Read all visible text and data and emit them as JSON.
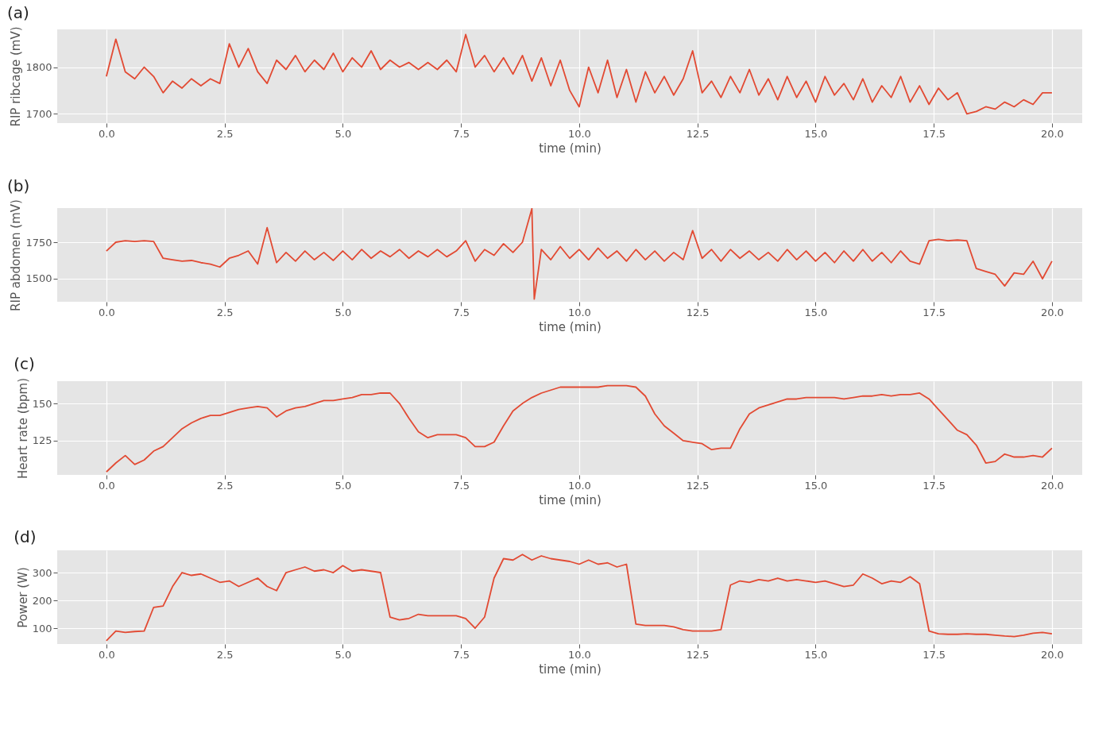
{
  "chart_data": [
    {
      "type": "line",
      "title": "(a)",
      "xlabel": "time (min)",
      "ylabel": "RIP ribcage (mV)",
      "x": [
        0,
        0.2,
        0.4,
        0.6,
        0.8,
        1,
        1.2,
        1.4,
        1.6,
        1.8,
        2,
        2.2,
        2.4,
        2.6,
        2.8,
        3,
        3.2,
        3.4,
        3.6,
        3.8,
        4,
        4.2,
        4.4,
        4.6,
        4.8,
        5,
        5.2,
        5.4,
        5.6,
        5.8,
        6,
        6.2,
        6.4,
        6.6,
        6.8,
        7,
        7.2,
        7.4,
        7.6,
        7.8,
        8,
        8.2,
        8.4,
        8.6,
        8.8,
        9,
        9.2,
        9.4,
        9.6,
        9.8,
        10,
        10.2,
        10.4,
        10.6,
        10.8,
        11,
        11.2,
        11.4,
        11.6,
        11.8,
        12,
        12.2,
        12.4,
        12.6,
        12.8,
        13,
        13.2,
        13.4,
        13.6,
        13.8,
        14,
        14.2,
        14.4,
        14.6,
        14.8,
        15,
        15.2,
        15.4,
        15.6,
        15.8,
        16,
        16.2,
        16.4,
        16.6,
        16.8,
        17,
        17.2,
        17.4,
        17.6,
        17.8,
        18,
        18.2,
        18.4,
        18.6,
        18.8,
        19,
        19.2,
        19.4,
        19.6,
        19.8,
        20
      ],
      "series": [
        {
          "color": "#e24a33",
          "values": [
            1780,
            1860,
            1790,
            1775,
            1800,
            1780,
            1745,
            1770,
            1755,
            1775,
            1760,
            1775,
            1765,
            1850,
            1800,
            1840,
            1790,
            1765,
            1815,
            1795,
            1825,
            1790,
            1815,
            1795,
            1830,
            1790,
            1820,
            1800,
            1835,
            1795,
            1815,
            1800,
            1810,
            1795,
            1810,
            1795,
            1815,
            1790,
            1870,
            1800,
            1825,
            1790,
            1820,
            1785,
            1825,
            1770,
            1820,
            1760,
            1815,
            1750,
            1715,
            1800,
            1745,
            1815,
            1735,
            1795,
            1725,
            1790,
            1745,
            1780,
            1740,
            1775,
            1835,
            1745,
            1770,
            1735,
            1780,
            1745,
            1795,
            1740,
            1775,
            1730,
            1780,
            1735,
            1770,
            1725,
            1780,
            1740,
            1765,
            1730,
            1775,
            1725,
            1760,
            1735,
            1780,
            1725,
            1760,
            1720,
            1755,
            1730,
            1745,
            1700,
            1705,
            1715,
            1710,
            1725,
            1715,
            1730,
            1720,
            1745,
            1745
          ]
        }
      ],
      "xlim": [
        -1.04,
        20.64
      ],
      "ylim": [
        1680,
        1881
      ],
      "xticks": [
        {
          "value": 0,
          "label": "0.0"
        },
        2.5,
        {
          "value": 5,
          "label": "5.0"
        },
        7.5,
        {
          "value": 10,
          "label": "10.0"
        },
        12.5,
        {
          "value": 15,
          "label": "15.0"
        },
        17.5,
        {
          "value": 20,
          "label": "20.0"
        }
      ],
      "yticks": [
        1700,
        1800
      ],
      "grid": true
    },
    {
      "type": "line",
      "title": "(b)",
      "xlabel": "time (min)",
      "ylabel": "RIP abdomen (mV)",
      "x": [
        0,
        0.2,
        0.4,
        0.6,
        0.8,
        1,
        1.2,
        1.4,
        1.6,
        1.8,
        2,
        2.2,
        2.4,
        2.6,
        2.8,
        3,
        3.2,
        3.4,
        3.6,
        3.8,
        4,
        4.2,
        4.4,
        4.6,
        4.8,
        5,
        5.2,
        5.4,
        5.6,
        5.8,
        6,
        6.2,
        6.4,
        6.6,
        6.8,
        7,
        7.2,
        7.4,
        7.6,
        7.8,
        8,
        8.2,
        8.4,
        8.6,
        8.8,
        9,
        9.05,
        9.2,
        9.4,
        9.6,
        9.8,
        10,
        10.2,
        10.4,
        10.6,
        10.8,
        11,
        11.2,
        11.4,
        11.6,
        11.8,
        12,
        12.2,
        12.4,
        12.6,
        12.8,
        13,
        13.2,
        13.4,
        13.6,
        13.8,
        14,
        14.2,
        14.4,
        14.6,
        14.8,
        15,
        15.2,
        15.4,
        15.6,
        15.8,
        16,
        16.2,
        16.4,
        16.6,
        16.8,
        17,
        17.2,
        17.4,
        17.6,
        17.8,
        18,
        18.2,
        18.4,
        18.6,
        18.8,
        19,
        19.2,
        19.4,
        19.6,
        19.8,
        20
      ],
      "series": [
        {
          "color": "#e24a33",
          "values": [
            1690,
            1750,
            1760,
            1755,
            1760,
            1755,
            1640,
            1630,
            1620,
            1625,
            1610,
            1600,
            1580,
            1640,
            1660,
            1690,
            1600,
            1850,
            1610,
            1680,
            1620,
            1690,
            1630,
            1680,
            1625,
            1690,
            1630,
            1700,
            1640,
            1690,
            1650,
            1700,
            1640,
            1690,
            1650,
            1700,
            1650,
            1690,
            1760,
            1620,
            1700,
            1660,
            1740,
            1680,
            1750,
            1980,
            1360,
            1700,
            1630,
            1720,
            1640,
            1700,
            1630,
            1710,
            1640,
            1690,
            1620,
            1700,
            1630,
            1690,
            1620,
            1680,
            1630,
            1830,
            1640,
            1700,
            1620,
            1700,
            1640,
            1690,
            1630,
            1680,
            1620,
            1700,
            1630,
            1690,
            1620,
            1680,
            1610,
            1690,
            1620,
            1700,
            1620,
            1680,
            1610,
            1690,
            1620,
            1600,
            1760,
            1770,
            1760,
            1765,
            1760,
            1570,
            1550,
            1530,
            1450,
            1540,
            1530,
            1620,
            1500,
            1620
          ]
        }
      ],
      "xlim": [
        -1.04,
        20.64
      ],
      "ylim": [
        1342,
        1984
      ],
      "xticks": [
        {
          "value": 0,
          "label": "0.0"
        },
        2.5,
        {
          "value": 5,
          "label": "5.0"
        },
        7.5,
        {
          "value": 10,
          "label": "10.0"
        },
        12.5,
        {
          "value": 15,
          "label": "15.0"
        },
        17.5,
        {
          "value": 20,
          "label": "20.0"
        }
      ],
      "yticks": [
        1500,
        1750
      ],
      "grid": true
    },
    {
      "type": "line",
      "title": "(c)",
      "xlabel": "time (min)",
      "ylabel": "Heart rate (bpm)",
      "x": [
        0,
        0.2,
        0.4,
        0.6,
        0.8,
        1,
        1.2,
        1.4,
        1.6,
        1.8,
        2,
        2.2,
        2.4,
        2.6,
        2.8,
        3,
        3.2,
        3.4,
        3.6,
        3.8,
        4,
        4.2,
        4.4,
        4.6,
        4.8,
        5,
        5.2,
        5.4,
        5.6,
        5.8,
        6,
        6.2,
        6.4,
        6.6,
        6.8,
        7,
        7.2,
        7.4,
        7.6,
        7.8,
        8,
        8.2,
        8.4,
        8.6,
        8.8,
        9,
        9.2,
        9.4,
        9.6,
        9.8,
        10,
        10.2,
        10.4,
        10.6,
        10.8,
        11,
        11.2,
        11.4,
        11.6,
        11.8,
        12,
        12.2,
        12.4,
        12.6,
        12.8,
        13,
        13.2,
        13.4,
        13.6,
        13.8,
        14,
        14.2,
        14.4,
        14.6,
        14.8,
        15,
        15.2,
        15.4,
        15.6,
        15.8,
        16,
        16.2,
        16.4,
        16.6,
        16.8,
        17,
        17.2,
        17.4,
        17.6,
        17.8,
        18,
        18.2,
        18.4,
        18.6,
        18.8,
        19,
        19.2,
        19.4,
        19.6,
        19.8,
        20
      ],
      "series": [
        {
          "color": "#e24a33",
          "values": [
            104,
            110,
            115,
            109,
            112,
            118,
            121,
            127,
            133,
            137,
            140,
            142,
            142,
            144,
            146,
            147,
            148,
            147,
            141,
            145,
            147,
            148,
            150,
            152,
            152,
            153,
            154,
            156,
            156,
            157,
            157,
            150,
            140,
            131,
            127,
            129,
            129,
            129,
            127,
            121,
            121,
            124,
            135,
            145,
            150,
            154,
            157,
            159,
            161,
            161,
            161,
            161,
            161,
            162,
            162,
            162,
            161,
            155,
            143,
            135,
            130,
            125,
            124,
            123,
            119,
            120,
            120,
            133,
            143,
            147,
            149,
            151,
            153,
            153,
            154,
            154,
            154,
            154,
            153,
            154,
            155,
            155,
            156,
            155,
            156,
            156,
            157,
            153,
            146,
            139,
            132,
            129,
            122,
            110,
            111,
            116,
            114,
            114,
            115,
            114,
            120
          ]
        }
      ],
      "xlim": [
        -1.04,
        20.64
      ],
      "ylim": [
        102,
        165
      ],
      "xticks": [
        {
          "value": 0,
          "label": "0.0"
        },
        2.5,
        {
          "value": 5,
          "label": "5.0"
        },
        7.5,
        {
          "value": 10,
          "label": "10.0"
        },
        12.5,
        {
          "value": 15,
          "label": "15.0"
        },
        17.5,
        {
          "value": 20,
          "label": "20.0"
        }
      ],
      "yticks": [
        125,
        150
      ],
      "grid": true
    },
    {
      "type": "line",
      "title": "(d)",
      "xlabel": "time (min)",
      "ylabel": "Power (W)",
      "x": [
        0,
        0.2,
        0.4,
        0.6,
        0.8,
        1,
        1.2,
        1.4,
        1.6,
        1.8,
        2,
        2.2,
        2.4,
        2.6,
        2.8,
        3,
        3.2,
        3.4,
        3.6,
        3.8,
        4,
        4.2,
        4.4,
        4.6,
        4.8,
        5,
        5.2,
        5.4,
        5.6,
        5.8,
        6,
        6.2,
        6.4,
        6.6,
        6.8,
        7,
        7.2,
        7.4,
        7.6,
        7.8,
        8,
        8.2,
        8.4,
        8.6,
        8.8,
        9,
        9.2,
        9.4,
        9.6,
        9.8,
        10,
        10.2,
        10.4,
        10.6,
        10.8,
        11,
        11.2,
        11.4,
        11.6,
        11.8,
        12,
        12.2,
        12.4,
        12.6,
        12.8,
        13,
        13.2,
        13.4,
        13.6,
        13.8,
        14,
        14.2,
        14.4,
        14.6,
        14.8,
        15,
        15.2,
        15.4,
        15.6,
        15.8,
        16,
        16.2,
        16.4,
        16.6,
        16.8,
        17,
        17.2,
        17.4,
        17.6,
        17.8,
        18,
        18.2,
        18.4,
        18.6,
        18.8,
        19,
        19.2,
        19.4,
        19.6,
        19.8,
        20
      ],
      "series": [
        {
          "color": "#e24a33",
          "values": [
            55,
            90,
            85,
            88,
            90,
            175,
            180,
            250,
            300,
            290,
            295,
            280,
            265,
            270,
            250,
            265,
            280,
            250,
            235,
            300,
            310,
            320,
            305,
            310,
            300,
            325,
            305,
            310,
            305,
            300,
            140,
            130,
            135,
            150,
            145,
            145,
            145,
            145,
            135,
            100,
            140,
            280,
            350,
            345,
            365,
            345,
            360,
            350,
            345,
            340,
            330,
            345,
            330,
            335,
            320,
            330,
            115,
            110,
            110,
            110,
            105,
            95,
            90,
            90,
            90,
            95,
            255,
            270,
            265,
            275,
            270,
            280,
            270,
            275,
            270,
            265,
            270,
            260,
            250,
            255,
            295,
            280,
            260,
            270,
            265,
            285,
            260,
            90,
            80,
            78,
            78,
            80,
            78,
            78,
            75,
            72,
            70,
            75,
            82,
            85,
            80
          ]
        }
      ],
      "xlim": [
        -1.04,
        20.64
      ],
      "ylim": [
        43,
        380
      ],
      "xticks": [
        {
          "value": 0,
          "label": "0.0"
        },
        2.5,
        {
          "value": 5,
          "label": "5.0"
        },
        7.5,
        {
          "value": 10,
          "label": "10.0"
        },
        12.5,
        {
          "value": 15,
          "label": "15.0"
        },
        17.5,
        {
          "value": 20,
          "label": "20.0"
        }
      ],
      "yticks": [
        100,
        200,
        300
      ],
      "grid": true
    }
  ]
}
